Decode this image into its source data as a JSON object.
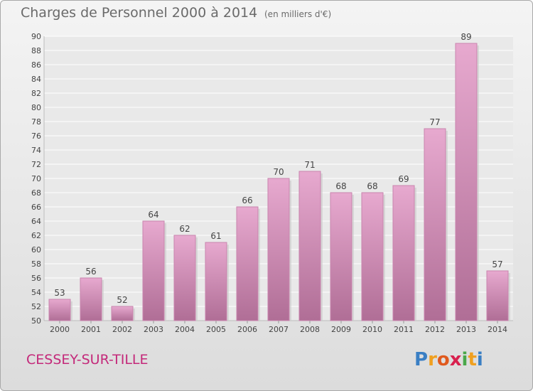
{
  "title": "Charges de Personnel 2000 à 2014",
  "subtitle": "(en milliers d'€)",
  "commune": "CESSEY-SUR-TILLE",
  "logo": {
    "text": "Proxiti",
    "letters": [
      {
        "ch": "P",
        "color": "#3a7fc4"
      },
      {
        "ch": "r",
        "color": "#f0a020"
      },
      {
        "ch": "o",
        "color": "#e05a1e"
      },
      {
        "ch": "x",
        "color": "#d8204e"
      },
      {
        "ch": "i",
        "color": "#4aa84a"
      },
      {
        "ch": "t",
        "color": "#f0a020"
      },
      {
        "ch": "i",
        "color": "#3a7fc4"
      }
    ]
  },
  "colors": {
    "bar_top": "#e7a9cf",
    "bar_bottom": "#b06e96",
    "grid": "#ffffff",
    "axis_text": "#444444"
  },
  "chart_data": {
    "type": "bar",
    "title": "Charges de Personnel 2000 à 2014",
    "subtitle": "(en milliers d'€)",
    "categories": [
      "2000",
      "2001",
      "2002",
      "2003",
      "2004",
      "2005",
      "2006",
      "2007",
      "2008",
      "2009",
      "2010",
      "2011",
      "2012",
      "2013",
      "2014"
    ],
    "values": [
      53,
      56,
      52,
      64,
      62,
      61,
      66,
      70,
      71,
      68,
      68,
      69,
      77,
      89,
      57
    ],
    "ylim": [
      50,
      90
    ],
    "yticks": [
      50,
      52,
      54,
      56,
      58,
      60,
      62,
      64,
      66,
      68,
      70,
      72,
      74,
      76,
      78,
      80,
      82,
      84,
      86,
      88,
      90
    ],
    "grid": true,
    "data_labels": true,
    "xlabel": "",
    "ylabel": ""
  }
}
